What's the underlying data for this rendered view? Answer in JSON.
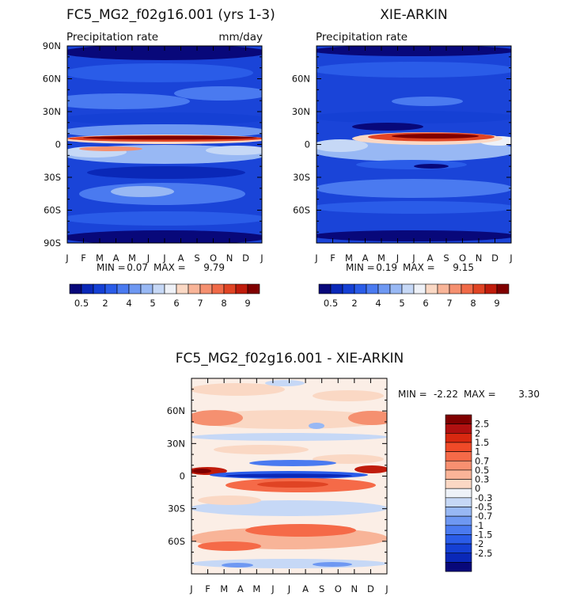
{
  "chart_data": [
    {
      "type": "heatmap",
      "title": "FC5_MG2_f02g16.001 (yrs 1-3)",
      "subtitle_left": "Precipitation rate",
      "subtitle_right": "mm/day",
      "x_tick_labels": [
        "J",
        "F",
        "M",
        "A",
        "M",
        "J",
        "J",
        "A",
        "S",
        "O",
        "N",
        "D",
        "J"
      ],
      "y_tick_labels": [
        "90N",
        "60N",
        "30N",
        "0",
        "30S",
        "60S",
        "90S"
      ],
      "ylim": [
        -90,
        90
      ],
      "stats": {
        "min_label": "MIN =",
        "min": "0.07",
        "max_label": "MAX =",
        "max": "9.79"
      },
      "colorbar": {
        "orientation": "horizontal",
        "labels": [
          "0.5",
          "2",
          "4",
          "5",
          "6",
          "7",
          "8",
          "9"
        ],
        "colors": [
          "#08087a",
          "#0a28b8",
          "#1540d4",
          "#2a5ce8",
          "#4a7af0",
          "#6e98f2",
          "#98b8f4",
          "#c6d8f6",
          "#eef1f7",
          "#fad8c4",
          "#f8b498",
          "#f59070",
          "#f06a48",
          "#e04424",
          "#c01c0c",
          "#800000"
        ]
      }
    },
    {
      "type": "heatmap",
      "title": "XIE-ARKIN",
      "subtitle_left": "Precipitation rate",
      "x_tick_labels": [
        "J",
        "F",
        "M",
        "A",
        "M",
        "J",
        "J",
        "A",
        "S",
        "O",
        "N",
        "D",
        "J"
      ],
      "y_tick_labels": [
        "60N",
        "30N",
        "0",
        "30S",
        "60S"
      ],
      "ylim": [
        -90,
        90
      ],
      "stats": {
        "min_label": "MIN =",
        "min": "0.19",
        "max_label": "MAX =",
        "max": "9.15"
      },
      "colorbar": {
        "orientation": "horizontal",
        "labels": [
          "0.5",
          "2",
          "4",
          "5",
          "6",
          "7",
          "8",
          "9"
        ]
      }
    },
    {
      "type": "heatmap",
      "title": "FC5_MG2_f02g16.001 - XIE-ARKIN",
      "x_tick_labels": [
        "J",
        "F",
        "M",
        "A",
        "M",
        "J",
        "J",
        "A",
        "S",
        "O",
        "N",
        "D",
        "J"
      ],
      "y_tick_labels": [
        "60N",
        "30N",
        "0",
        "30S",
        "60S"
      ],
      "ylim": [
        -90,
        90
      ],
      "stats": {
        "min_label": "MIN =",
        "min": "-2.22",
        "max_label": "MAX =",
        "max": "3.30"
      },
      "colorbar": {
        "orientation": "vertical",
        "labels": [
          "2.5",
          "2",
          "1.5",
          "1",
          "0.7",
          "0.5",
          "0.3",
          "0",
          "-0.3",
          "-0.5",
          "-0.7",
          "-1",
          "-1.5",
          "-2",
          "-2.5"
        ],
        "colors": [
          "#800000",
          "#b01010",
          "#d82810",
          "#f04a28",
          "#f56a48",
          "#f89070",
          "#fab498",
          "#fbd8c4",
          "#eef2f8",
          "#c6d8f6",
          "#98b8f4",
          "#6e98f2",
          "#4a7af0",
          "#2a5ce8",
          "#1540d4",
          "#0a28b8",
          "#08087a"
        ]
      }
    }
  ]
}
